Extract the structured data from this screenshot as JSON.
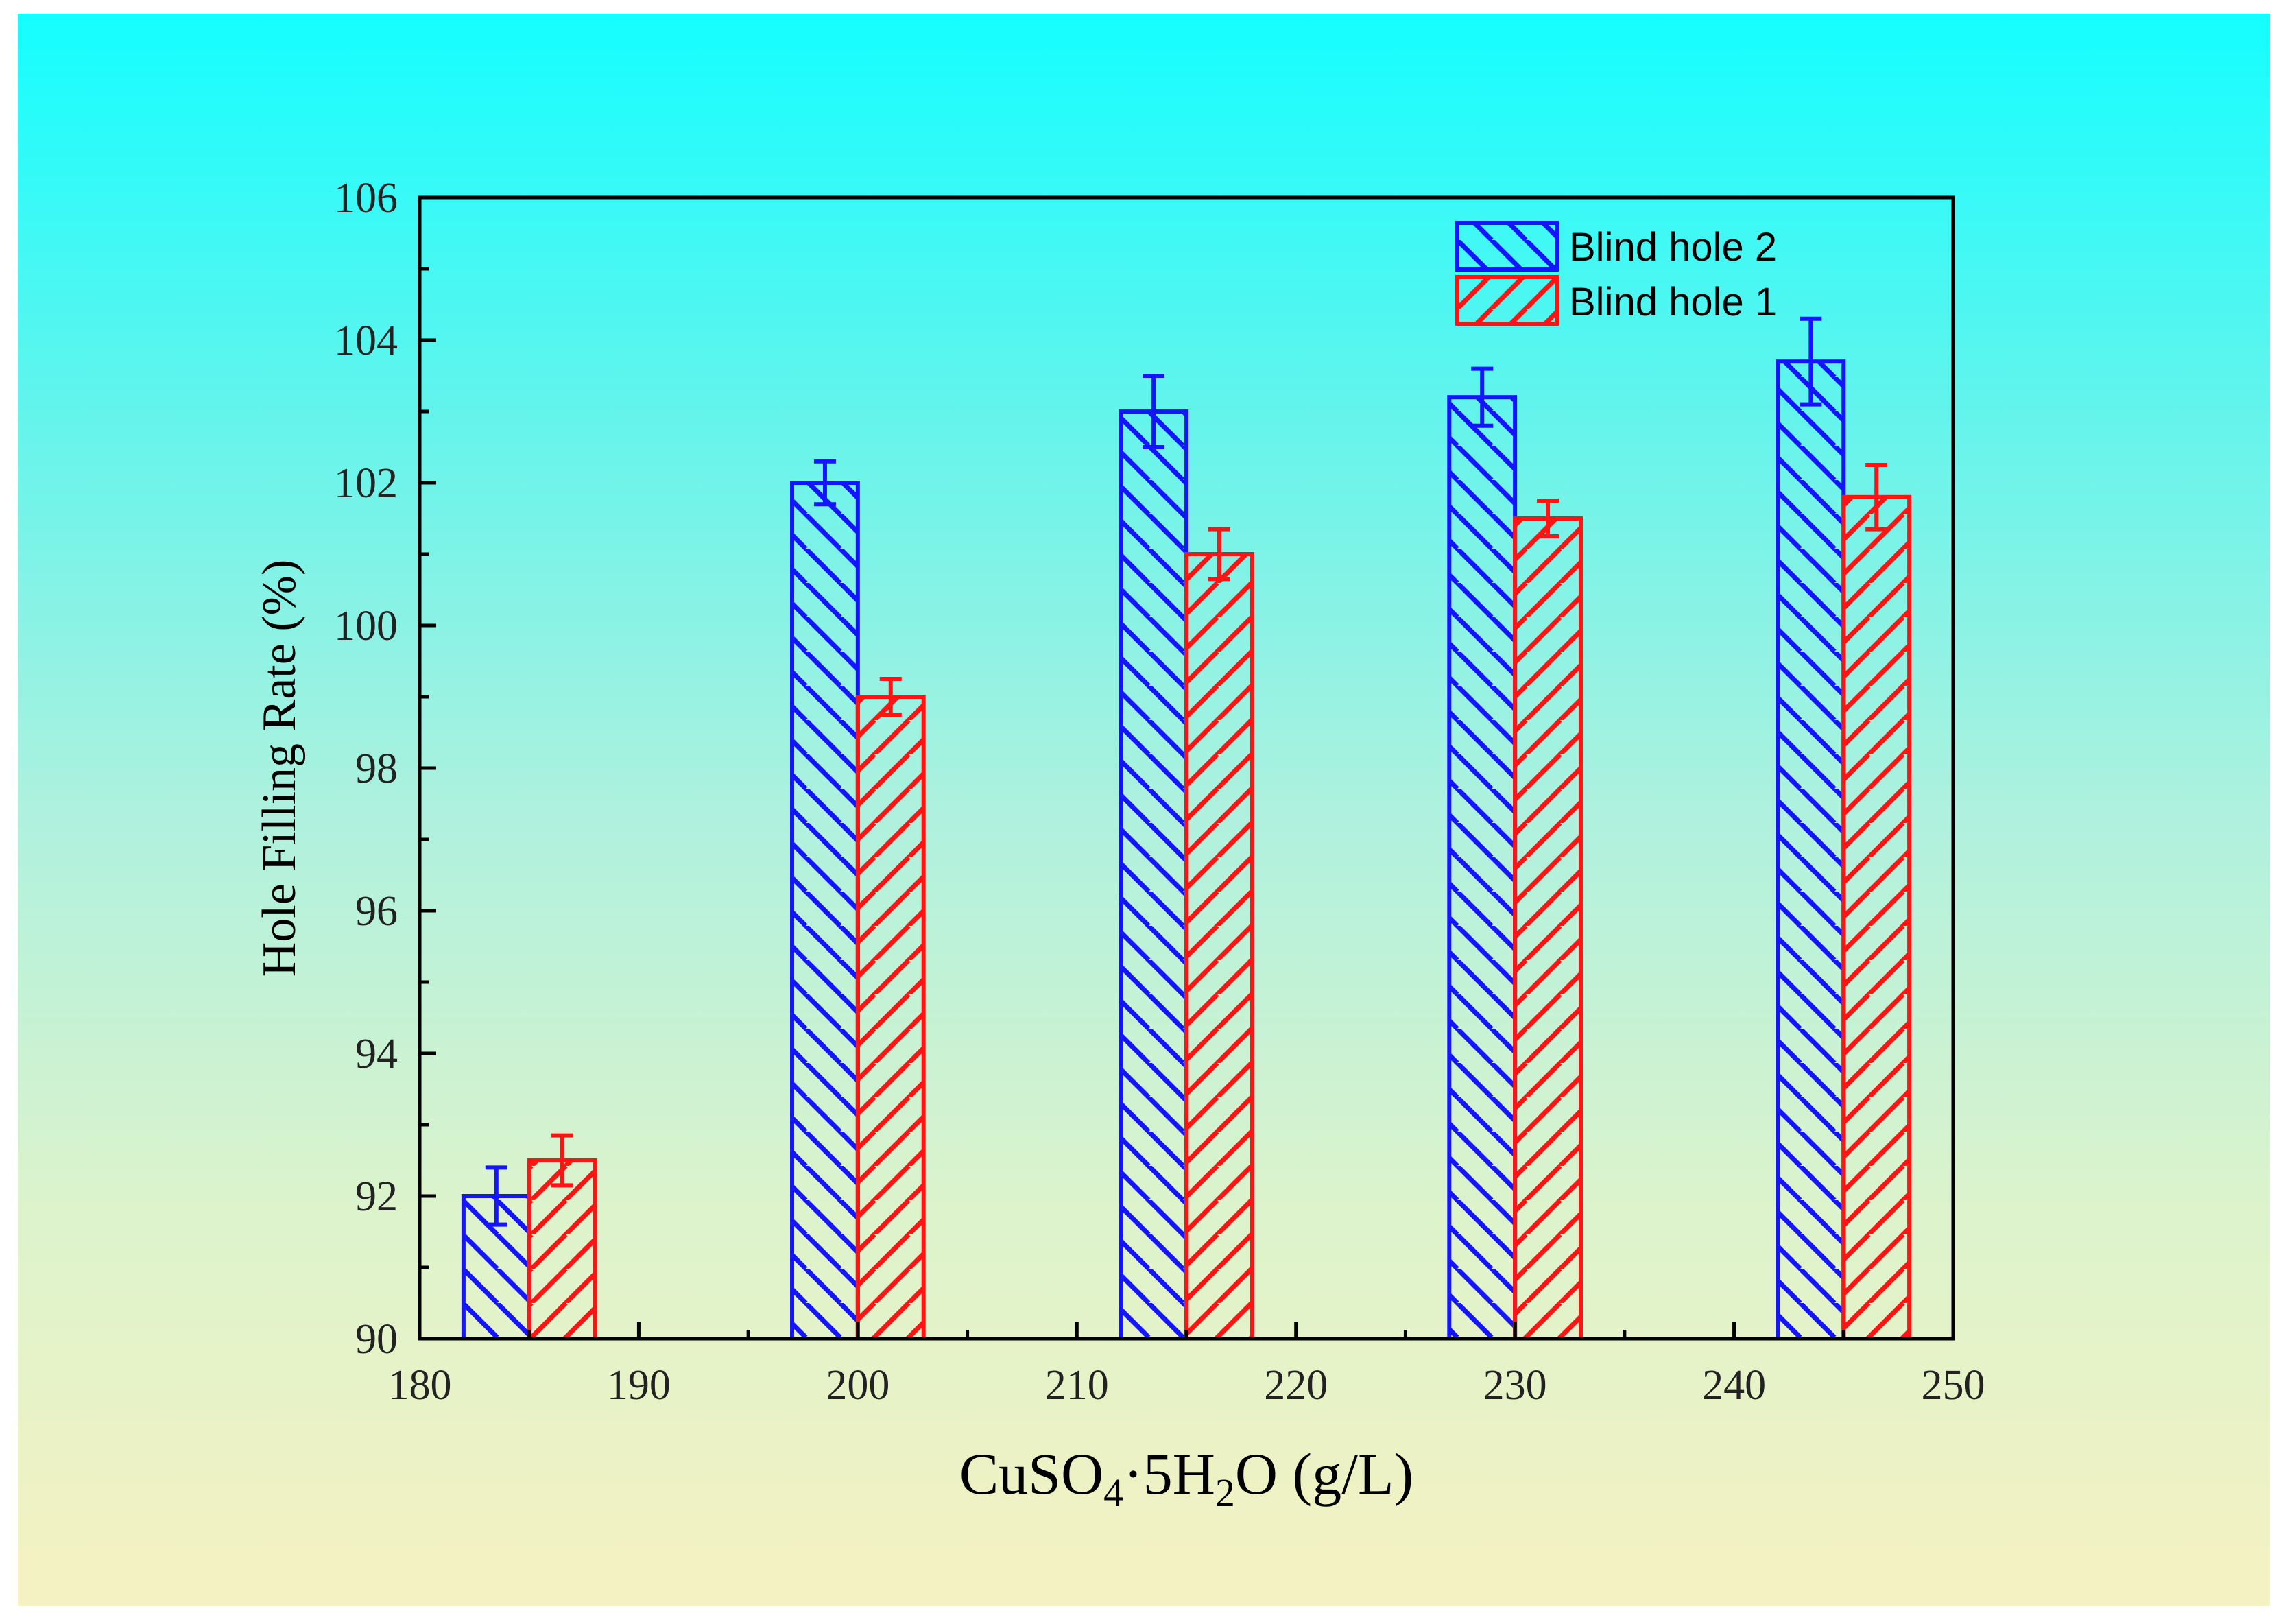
{
  "chart_data": {
    "type": "bar",
    "title": "",
    "xlabel": {
      "main": "CuSO",
      "sub1": "4",
      "mid": "·5H",
      "sub2": "2",
      "tail": "O (g/L)"
    },
    "ylabel": "Hole Filling Rate (%)",
    "xlim": [
      180,
      250
    ],
    "ylim": [
      90,
      106
    ],
    "x_ticks": [
      180,
      190,
      200,
      210,
      220,
      230,
      240,
      250
    ],
    "y_ticks": [
      90,
      92,
      94,
      96,
      98,
      100,
      102,
      104,
      106
    ],
    "categories": [
      185,
      200,
      215,
      230,
      245
    ],
    "legend_position": "top-right",
    "series": [
      {
        "name": "Blind hole 2",
        "color": "#1414ff",
        "hatch": "backslash",
        "values": [
          92.0,
          102.0,
          103.0,
          103.2,
          103.7
        ],
        "errors": [
          0.4,
          0.3,
          0.5,
          0.4,
          0.6
        ]
      },
      {
        "name": "Blind hole 1",
        "color": "#ff1414",
        "hatch": "slash",
        "values": [
          92.5,
          99.0,
          101.0,
          101.5,
          101.8
        ],
        "errors": [
          0.35,
          0.25,
          0.35,
          0.25,
          0.45
        ]
      }
    ]
  }
}
